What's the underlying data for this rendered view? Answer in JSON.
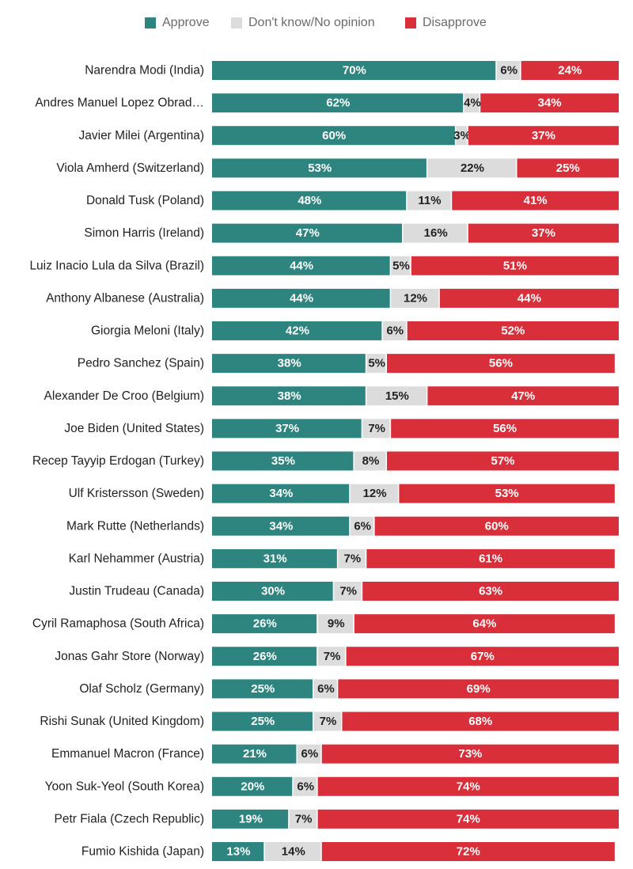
{
  "chart_data": {
    "type": "bar",
    "orientation": "horizontal",
    "stacked": true,
    "value_unit": "%",
    "title": "",
    "xlabel": "",
    "ylabel": "",
    "xlim": [
      0,
      100
    ],
    "grid": false,
    "legend_position": "top",
    "categories": [
      "Narendra Modi (India)",
      "Andres Manuel Lopez Obrad…",
      "Javier Milei (Argentina)",
      "Viola Amherd (Switzerland)",
      "Donald Tusk (Poland)",
      "Simon Harris (Ireland)",
      "Luiz Inacio Lula da Silva (Brazil)",
      "Anthony Albanese (Australia)",
      "Giorgia Meloni (Italy)",
      "Pedro Sanchez (Spain)",
      "Alexander De Croo (Belgium)",
      "Joe Biden (United States)",
      "Recep Tayyip Erdogan (Turkey)",
      "Ulf Kristersson (Sweden)",
      "Mark Rutte (Netherlands)",
      "Karl Nehammer (Austria)",
      "Justin Trudeau (Canada)",
      "Cyril Ramaphosa (South Africa)",
      "Jonas Gahr Store (Norway)",
      "Olaf Scholz (Germany)",
      "Rishi Sunak (United Kingdom)",
      "Emmanuel Macron (France)",
      "Yoon Suk-Yeol (South Korea)",
      "Petr Fiala (Czech Republic)",
      "Fumio Kishida (Japan)"
    ],
    "series": [
      {
        "name": "Approve",
        "color": "#2e8580",
        "label_color": "#ffffff",
        "values": [
          70,
          62,
          60,
          53,
          48,
          47,
          44,
          44,
          42,
          38,
          38,
          37,
          35,
          34,
          34,
          31,
          30,
          26,
          26,
          25,
          25,
          21,
          20,
          19,
          13
        ]
      },
      {
        "name": "Don't know/No opinion",
        "color": "#dcdcdc",
        "label_color": "#222222",
        "values": [
          6,
          4,
          3,
          22,
          11,
          16,
          5,
          12,
          6,
          5,
          15,
          7,
          8,
          12,
          6,
          7,
          7,
          9,
          7,
          6,
          7,
          6,
          6,
          7,
          14
        ]
      },
      {
        "name": "Disapprove",
        "color": "#d92f3a",
        "label_color": "#ffffff",
        "values": [
          24,
          34,
          37,
          25,
          41,
          37,
          51,
          44,
          52,
          56,
          47,
          56,
          57,
          53,
          60,
          61,
          63,
          64,
          67,
          69,
          68,
          73,
          74,
          74,
          72
        ]
      }
    ]
  }
}
